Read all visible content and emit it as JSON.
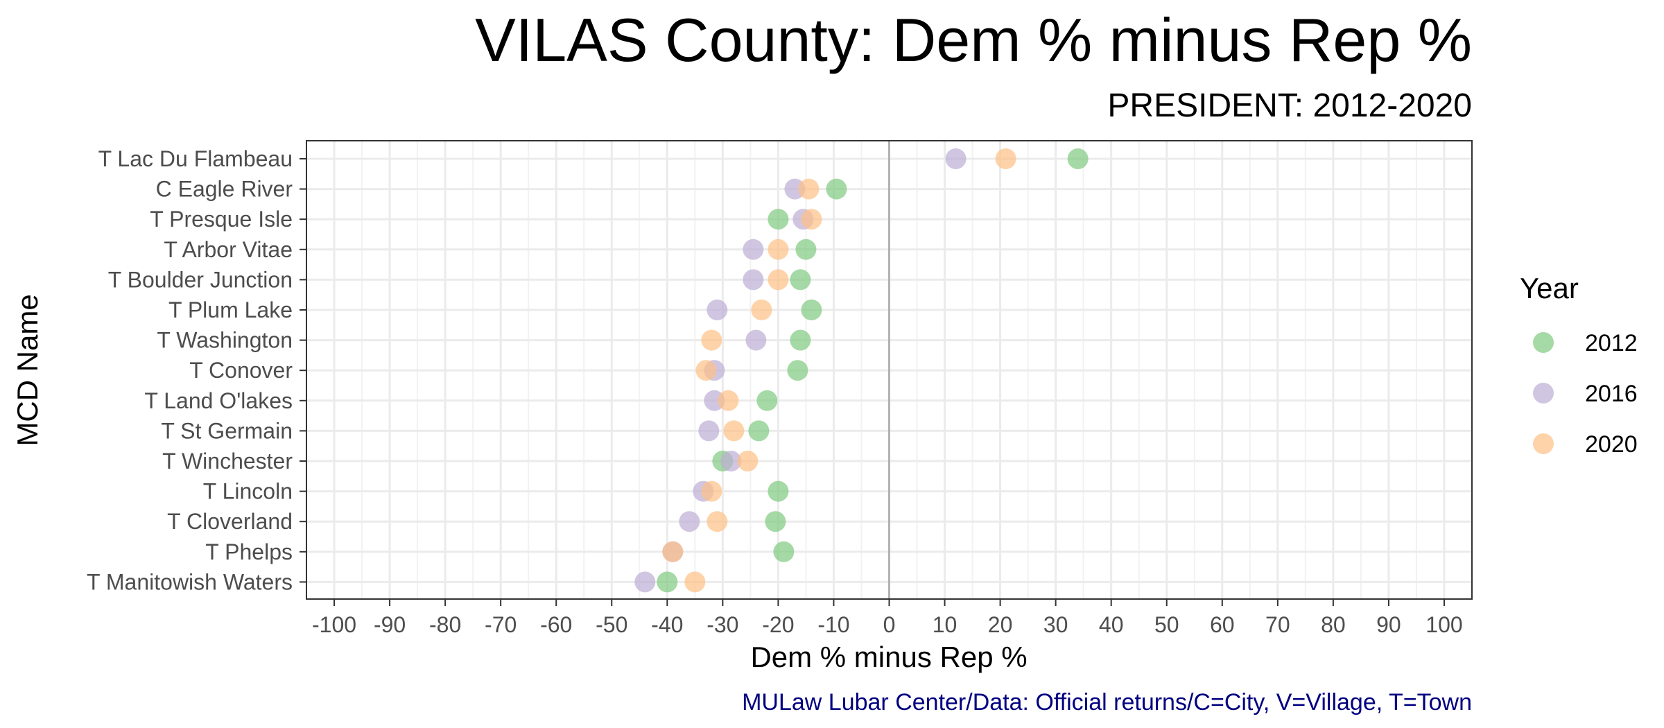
{
  "chart_data": {
    "type": "scatter",
    "title": "VILAS County: Dem % minus Rep %",
    "subtitle": "PRESIDENT: 2012-2020",
    "xlabel": "Dem % minus Rep %",
    "ylabel": "MCD Name",
    "caption": "MULaw Lubar Center/Data: Official returns/C=City, V=Village, T=Town",
    "xlim": [
      -105,
      105
    ],
    "xticks": [
      -100,
      -90,
      -80,
      -70,
      -60,
      -50,
      -40,
      -30,
      -20,
      -10,
      0,
      10,
      20,
      30,
      40,
      50,
      60,
      70,
      80,
      90,
      100
    ],
    "grid": true,
    "legend": {
      "title": "Year",
      "position": "right"
    },
    "categories": [
      "T Lac Du Flambeau",
      "C Eagle River",
      "T Presque Isle",
      "T Arbor Vitae",
      "T Boulder Junction",
      "T Plum Lake",
      "T Washington",
      "T Conover",
      "T Land O'lakes",
      "T St Germain",
      "T Winchester",
      "T Lincoln",
      "T Cloverland",
      "T Phelps",
      "T Manitowish Waters"
    ],
    "series": [
      {
        "name": "2012",
        "color": "#7fc97f",
        "values": [
          34,
          -9.5,
          -20,
          -15,
          -16,
          -14,
          -16,
          -16.5,
          -22,
          -23.5,
          -30,
          -20,
          -20.5,
          -19,
          -40
        ]
      },
      {
        "name": "2016",
        "color": "#beaed4",
        "values": [
          12,
          -17,
          -15.5,
          -24.5,
          -24.5,
          -31,
          -24,
          -31.5,
          -31.5,
          -32.5,
          -28.5,
          -33.5,
          -36,
          -39,
          -44
        ]
      },
      {
        "name": "2020",
        "color": "#fdc086",
        "values": [
          21,
          -14.5,
          -14,
          -20,
          -20,
          -23,
          -32,
          -33,
          -29,
          -28,
          -25.5,
          -32,
          -31,
          -39,
          -35
        ]
      }
    ]
  }
}
